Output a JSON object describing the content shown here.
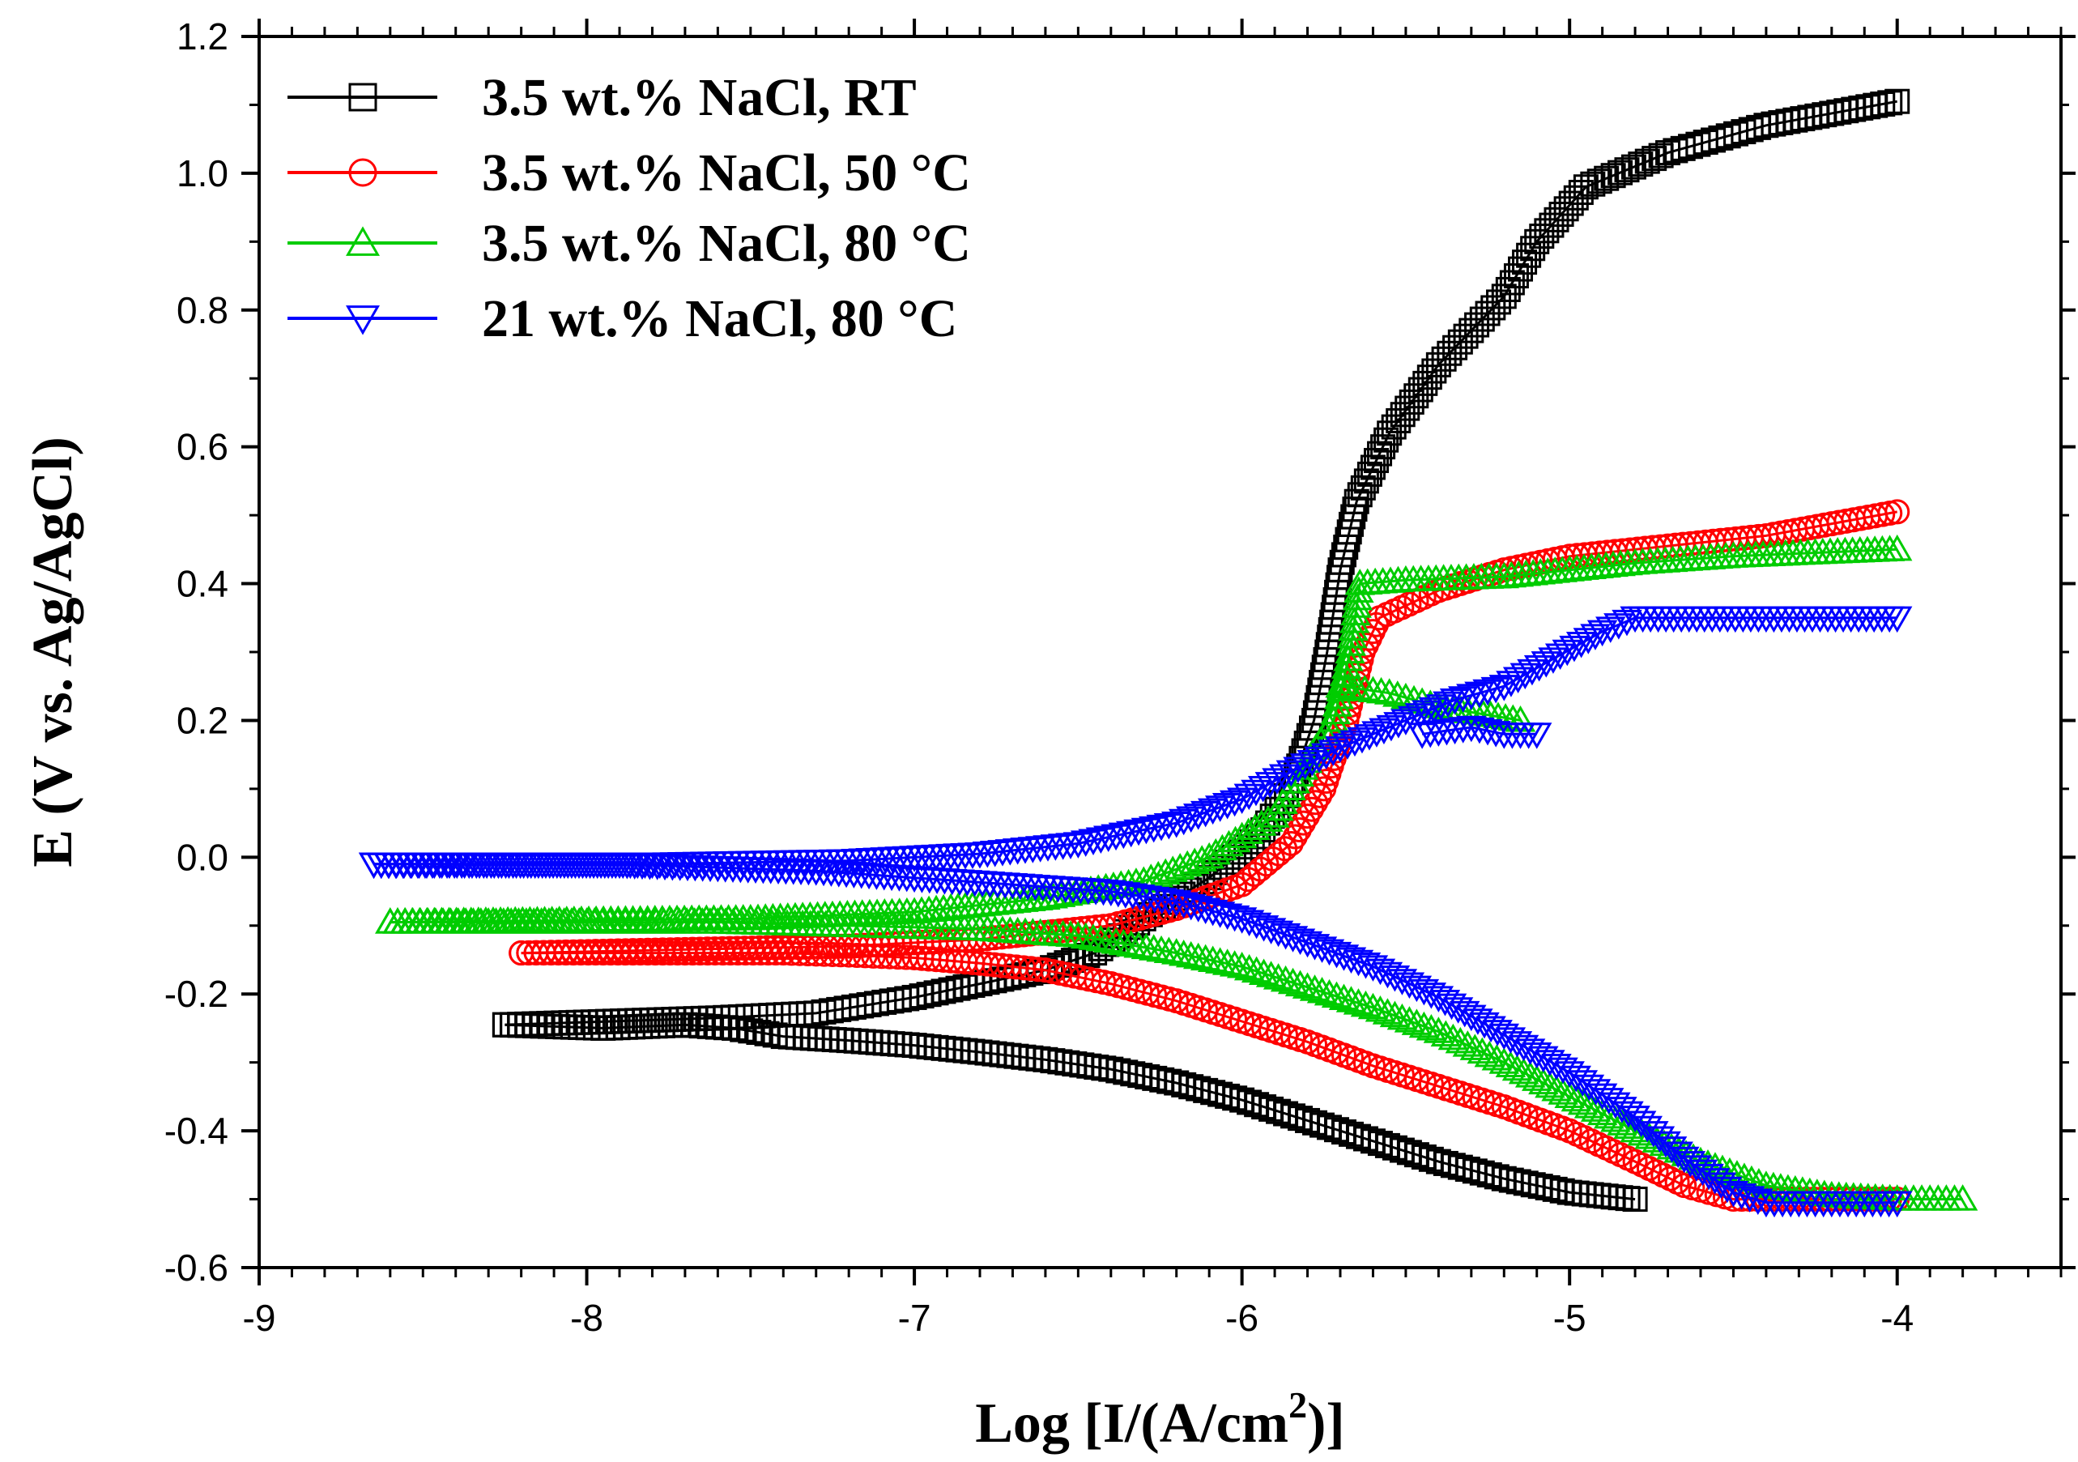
{
  "chart_data": {
    "type": "scatter",
    "title": "",
    "xlabel": "Log [I/(A/cm2)]",
    "xlabel_main": "Log [I/(A/cm",
    "xlabel_sup": "2",
    "xlabel_end": ")]",
    "ylabel": "E (V vs. Ag/AgCl)",
    "xlim": [
      -9,
      -3.5
    ],
    "ylim": [
      -0.6,
      1.2
    ],
    "x_ticks": [
      -9,
      -8,
      -7,
      -6,
      -5,
      -4
    ],
    "x_tick_labels": [
      "-9",
      "-8",
      "-7",
      "-6",
      "-5",
      "-4"
    ],
    "y_ticks": [
      -0.6,
      -0.4,
      -0.2,
      0.0,
      0.2,
      0.4,
      0.6,
      0.8,
      1.0,
      1.2
    ],
    "y_tick_labels": [
      "-0.6",
      "-0.4",
      "-0.2",
      "0.0",
      "0.2",
      "0.4",
      "0.6",
      "0.8",
      "1.0",
      "1.2"
    ],
    "legend_position": "top-left",
    "grid": false,
    "series": [
      {
        "name": "3.5 wt.% NaCl, RT",
        "color": "#000000",
        "marker": "square",
        "cathodic": [
          [
            -8.25,
            -0.245
          ],
          [
            -7.95,
            -0.25
          ],
          [
            -7.7,
            -0.245
          ],
          [
            -7.55,
            -0.25
          ],
          [
            -7.4,
            -0.262
          ],
          [
            -7.2,
            -0.268
          ],
          [
            -7.0,
            -0.275
          ],
          [
            -6.8,
            -0.285
          ],
          [
            -6.6,
            -0.296
          ],
          [
            -6.4,
            -0.31
          ],
          [
            -6.2,
            -0.33
          ],
          [
            -6.0,
            -0.355
          ],
          [
            -5.8,
            -0.385
          ],
          [
            -5.6,
            -0.415
          ],
          [
            -5.4,
            -0.445
          ],
          [
            -5.2,
            -0.47
          ],
          [
            -5.0,
            -0.49
          ],
          [
            -4.8,
            -0.5
          ]
        ],
        "anodic": [
          [
            -8.25,
            -0.245
          ],
          [
            -7.6,
            -0.235
          ],
          [
            -7.3,
            -0.228
          ],
          [
            -7.0,
            -0.205
          ],
          [
            -6.8,
            -0.185
          ],
          [
            -6.6,
            -0.165
          ],
          [
            -6.45,
            -0.14
          ],
          [
            -6.3,
            -0.09
          ],
          [
            -6.1,
            -0.03
          ],
          [
            -5.95,
            0.03
          ],
          [
            -5.85,
            0.1
          ],
          [
            -5.78,
            0.2
          ],
          [
            -5.74,
            0.3
          ],
          [
            -5.7,
            0.42
          ],
          [
            -5.65,
            0.52
          ],
          [
            -5.55,
            0.62
          ],
          [
            -5.4,
            0.72
          ],
          [
            -5.2,
            0.82
          ],
          [
            -5.1,
            0.9
          ],
          [
            -4.95,
            0.98
          ],
          [
            -4.7,
            1.03
          ],
          [
            -4.4,
            1.07
          ],
          [
            -4.0,
            1.105
          ]
        ]
      },
      {
        "name": "3.5 wt.% NaCl, 50 °C",
        "color": "#ff0000",
        "marker": "circle",
        "cathodic": [
          [
            -8.2,
            -0.14
          ],
          [
            -7.7,
            -0.14
          ],
          [
            -7.4,
            -0.14
          ],
          [
            -7.2,
            -0.143
          ],
          [
            -7.0,
            -0.147
          ],
          [
            -6.8,
            -0.155
          ],
          [
            -6.6,
            -0.165
          ],
          [
            -6.4,
            -0.185
          ],
          [
            -6.2,
            -0.21
          ],
          [
            -6.0,
            -0.24
          ],
          [
            -5.8,
            -0.27
          ],
          [
            -5.6,
            -0.305
          ],
          [
            -5.4,
            -0.335
          ],
          [
            -5.2,
            -0.365
          ],
          [
            -5.0,
            -0.4
          ],
          [
            -4.8,
            -0.445
          ],
          [
            -4.65,
            -0.48
          ],
          [
            -4.5,
            -0.5
          ],
          [
            -4.3,
            -0.5
          ],
          [
            -4.0,
            -0.5
          ]
        ],
        "anodic": [
          [
            -8.2,
            -0.14
          ],
          [
            -7.2,
            -0.13
          ],
          [
            -6.8,
            -0.12
          ],
          [
            -6.4,
            -0.1
          ],
          [
            -6.2,
            -0.075
          ],
          [
            -6.0,
            -0.04
          ],
          [
            -5.85,
            0.02
          ],
          [
            -5.75,
            0.1
          ],
          [
            -5.68,
            0.2
          ],
          [
            -5.63,
            0.3
          ],
          [
            -5.58,
            0.35
          ],
          [
            -5.4,
            0.39
          ],
          [
            -5.2,
            0.42
          ],
          [
            -5.0,
            0.44
          ],
          [
            -4.7,
            0.455
          ],
          [
            -4.4,
            0.47
          ],
          [
            -4.0,
            0.505
          ]
        ]
      },
      {
        "name": "3.5 wt.% NaCl, 80 °C",
        "color": "#00cc00",
        "marker": "triangle-up",
        "cathodic": [
          [
            -8.6,
            -0.095
          ],
          [
            -8.3,
            -0.095
          ],
          [
            -8.0,
            -0.095
          ],
          [
            -7.6,
            -0.095
          ],
          [
            -7.2,
            -0.1
          ],
          [
            -6.8,
            -0.105
          ],
          [
            -6.5,
            -0.115
          ],
          [
            -6.2,
            -0.14
          ],
          [
            -6.0,
            -0.16
          ],
          [
            -5.8,
            -0.19
          ],
          [
            -5.6,
            -0.22
          ],
          [
            -5.4,
            -0.255
          ],
          [
            -5.2,
            -0.3
          ],
          [
            -5.0,
            -0.35
          ],
          [
            -4.8,
            -0.4
          ],
          [
            -4.6,
            -0.445
          ],
          [
            -4.4,
            -0.48
          ],
          [
            -4.2,
            -0.495
          ],
          [
            -4.0,
            -0.5
          ],
          [
            -3.8,
            -0.5
          ]
        ],
        "anodic": [
          [
            -8.6,
            -0.095
          ],
          [
            -7.5,
            -0.09
          ],
          [
            -7.0,
            -0.08
          ],
          [
            -6.6,
            -0.06
          ],
          [
            -6.3,
            -0.035
          ],
          [
            -6.1,
            0.0
          ],
          [
            -5.9,
            0.06
          ],
          [
            -5.8,
            0.14
          ],
          [
            -5.72,
            0.2
          ],
          [
            -5.67,
            0.3
          ],
          [
            -5.64,
            0.4
          ],
          [
            -5.5,
            0.405
          ],
          [
            -5.2,
            0.41
          ],
          [
            -5.0,
            0.42
          ],
          [
            -4.8,
            0.43
          ],
          [
            -4.5,
            0.44
          ],
          [
            -4.0,
            0.45
          ]
        ],
        "excursion": [
          [
            -5.7,
            0.25
          ],
          [
            -5.55,
            0.24
          ],
          [
            -5.4,
            0.22
          ],
          [
            -5.15,
            0.2
          ]
        ]
      },
      {
        "name": "21 wt.% NaCl, 80 °C",
        "color": "#0000ff",
        "marker": "triangle-down",
        "cathodic": [
          [
            -8.65,
            -0.01
          ],
          [
            -8.35,
            -0.01
          ],
          [
            -7.9,
            -0.01
          ],
          [
            -7.6,
            -0.015
          ],
          [
            -7.3,
            -0.02
          ],
          [
            -7.0,
            -0.03
          ],
          [
            -6.7,
            -0.04
          ],
          [
            -6.4,
            -0.05
          ],
          [
            -6.2,
            -0.065
          ],
          [
            -6.0,
            -0.09
          ],
          [
            -5.8,
            -0.125
          ],
          [
            -5.6,
            -0.16
          ],
          [
            -5.4,
            -0.205
          ],
          [
            -5.2,
            -0.26
          ],
          [
            -5.0,
            -0.315
          ],
          [
            -4.8,
            -0.38
          ],
          [
            -4.65,
            -0.44
          ],
          [
            -4.5,
            -0.49
          ],
          [
            -4.4,
            -0.505
          ],
          [
            -4.2,
            -0.505
          ],
          [
            -4.0,
            -0.505
          ]
        ],
        "anodic": [
          [
            -8.65,
            -0.01
          ],
          [
            -7.8,
            -0.01
          ],
          [
            -7.2,
            -0.005
          ],
          [
            -6.8,
            0.005
          ],
          [
            -6.5,
            0.02
          ],
          [
            -6.2,
            0.05
          ],
          [
            -6.0,
            0.085
          ],
          [
            -5.85,
            0.125
          ],
          [
            -5.7,
            0.16
          ],
          [
            -5.5,
            0.2
          ],
          [
            -5.35,
            0.23
          ],
          [
            -5.2,
            0.25
          ],
          [
            -5.05,
            0.29
          ],
          [
            -4.9,
            0.33
          ],
          [
            -4.8,
            0.35
          ],
          [
            -4.4,
            0.35
          ],
          [
            -4.0,
            0.35
          ]
        ],
        "excursion": [
          [
            -5.45,
            0.18
          ],
          [
            -5.3,
            0.19
          ],
          [
            -5.2,
            0.18
          ],
          [
            -5.1,
            0.18
          ]
        ]
      }
    ]
  },
  "colors": {
    "background": "#ffffff",
    "axis": "#000000"
  }
}
